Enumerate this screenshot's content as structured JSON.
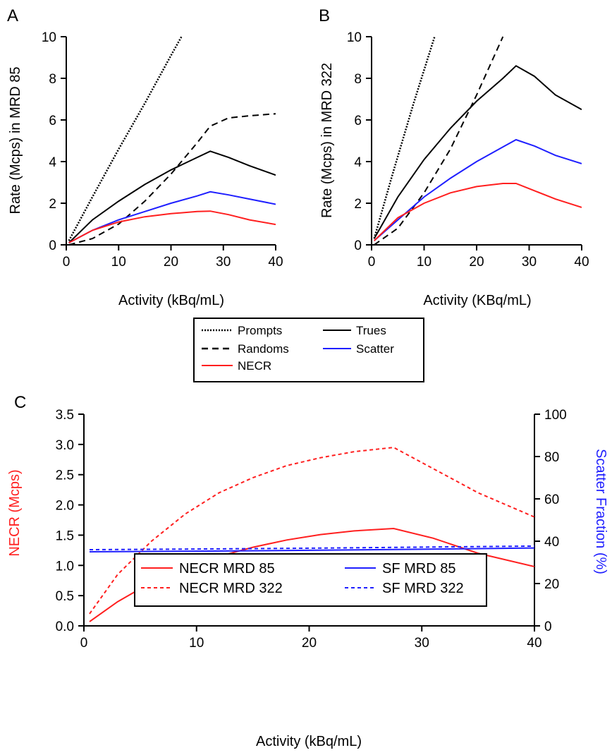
{
  "chart_data": [
    {
      "type": "line",
      "panel_label": "A",
      "xlabel": "Activity (kBq/mL)",
      "ylabel": "Rate (Mcps) in MRD 85",
      "xlim": [
        0,
        40
      ],
      "ylim": [
        0,
        10
      ],
      "xticks": [
        "0",
        "10",
        "20",
        "30",
        "40"
      ],
      "yticks": [
        "0",
        "2",
        "4",
        "6",
        "8",
        "10"
      ],
      "grid": false,
      "series": [
        {
          "key": "prompts",
          "color": "#000000",
          "style": "dotted",
          "x": [
            0.5,
            5,
            10,
            15,
            20,
            22
          ],
          "y": [
            0.2,
            2.3,
            4.6,
            6.8,
            9.1,
            10.0
          ]
        },
        {
          "key": "randoms",
          "color": "#000000",
          "style": "dashed",
          "x": [
            0.5,
            5,
            10,
            15,
            20,
            25,
            27.5,
            31,
            35,
            40
          ],
          "y": [
            0.0,
            0.3,
            1.0,
            2.1,
            3.4,
            4.9,
            5.7,
            6.1,
            6.2,
            6.3
          ]
        },
        {
          "key": "trues",
          "color": "#000000",
          "style": "solid",
          "x": [
            0.5,
            5,
            10,
            15,
            20,
            25,
            27.5,
            31,
            35,
            40
          ],
          "y": [
            0.1,
            1.2,
            2.1,
            2.9,
            3.6,
            4.2,
            4.5,
            4.2,
            3.8,
            3.35
          ]
        },
        {
          "key": "scatter",
          "color": "#1f1fff",
          "style": "solid",
          "x": [
            0.5,
            5,
            10,
            15,
            20,
            25,
            27.5,
            31,
            35,
            40
          ],
          "y": [
            0.1,
            0.7,
            1.2,
            1.6,
            2.0,
            2.35,
            2.55,
            2.4,
            2.2,
            1.95
          ]
        },
        {
          "key": "necr",
          "color": "#ff1f1f",
          "style": "solid",
          "x": [
            0.5,
            5,
            10,
            15,
            20,
            25,
            27.5,
            31,
            35,
            40
          ],
          "y": [
            0.1,
            0.7,
            1.1,
            1.35,
            1.5,
            1.6,
            1.62,
            1.45,
            1.2,
            0.98
          ]
        }
      ]
    },
    {
      "type": "line",
      "panel_label": "B",
      "xlabel": "Activity (KBq/mL)",
      "ylabel": "Rate (Mcps) in MRD 322",
      "xlim": [
        0,
        40
      ],
      "ylim": [
        0,
        10
      ],
      "xticks": [
        "0",
        "10",
        "20",
        "30",
        "40"
      ],
      "yticks": [
        "0",
        "2",
        "4",
        "6",
        "8",
        "10"
      ],
      "grid": false,
      "series": [
        {
          "key": "prompts",
          "color": "#000000",
          "style": "dotted",
          "x": [
            0.5,
            4,
            8,
            12
          ],
          "y": [
            0.3,
            3.4,
            6.8,
            10.0
          ]
        },
        {
          "key": "randoms",
          "color": "#000000",
          "style": "dashed",
          "x": [
            0.5,
            5,
            10,
            15,
            20,
            25
          ],
          "y": [
            0.0,
            0.8,
            2.5,
            4.6,
            7.2,
            10.0
          ]
        },
        {
          "key": "trues",
          "color": "#000000",
          "style": "solid",
          "x": [
            0.5,
            5,
            10,
            15,
            20,
            25,
            27.5,
            31,
            35,
            40
          ],
          "y": [
            0.3,
            2.3,
            4.1,
            5.6,
            6.9,
            8.0,
            8.6,
            8.1,
            7.2,
            6.5
          ]
        },
        {
          "key": "scatter",
          "color": "#1f1fff",
          "style": "solid",
          "x": [
            0.5,
            5,
            10,
            15,
            20,
            25,
            27.5,
            31,
            35,
            40
          ],
          "y": [
            0.2,
            1.2,
            2.3,
            3.2,
            4.0,
            4.7,
            5.05,
            4.75,
            4.3,
            3.9
          ]
        },
        {
          "key": "necr",
          "color": "#ff1f1f",
          "style": "solid",
          "x": [
            0.5,
            5,
            10,
            15,
            20,
            25,
            27.5,
            31,
            35,
            40
          ],
          "y": [
            0.2,
            1.3,
            2.0,
            2.5,
            2.8,
            2.95,
            2.95,
            2.6,
            2.2,
            1.8
          ]
        }
      ]
    },
    {
      "type": "line",
      "panel_label": "C",
      "xlabel": "Activity (kBq/mL)",
      "ylabel": "NECR (Mcps)",
      "y2label": "Scatter Fraction (%)",
      "xlim": [
        0,
        40
      ],
      "ylim": [
        0,
        3.5
      ],
      "y2lim": [
        0,
        100
      ],
      "xticks": [
        "0",
        "10",
        "20",
        "30",
        "40"
      ],
      "yticks": [
        "0.0",
        "0.5",
        "1.0",
        "1.5",
        "2.0",
        "2.5",
        "3.0",
        "3.5"
      ],
      "y2ticks": [
        "0",
        "20",
        "40",
        "60",
        "80",
        "100"
      ],
      "grid": false,
      "legend_position": "lower-center",
      "series": [
        {
          "name": "NECR MRD 85",
          "axis": "left",
          "color": "#ff1f1f",
          "style": "solid",
          "x": [
            0.5,
            3,
            6,
            9,
            12,
            15,
            18,
            21,
            24,
            27.5,
            31,
            35,
            40
          ],
          "y": [
            0.07,
            0.4,
            0.72,
            0.95,
            1.15,
            1.3,
            1.42,
            1.51,
            1.57,
            1.61,
            1.45,
            1.2,
            0.98
          ]
        },
        {
          "name": "NECR MRD 322",
          "axis": "left",
          "color": "#ff1f1f",
          "style": "dashed",
          "x": [
            0.5,
            3,
            6,
            9,
            12,
            15,
            18,
            21,
            24,
            27.5,
            31,
            35,
            40
          ],
          "y": [
            0.2,
            0.85,
            1.4,
            1.85,
            2.2,
            2.45,
            2.65,
            2.78,
            2.88,
            2.95,
            2.6,
            2.2,
            1.8
          ]
        },
        {
          "name": "SF MRD 85",
          "axis": "right",
          "color": "#1f1fff",
          "style": "solid",
          "x": [
            0.5,
            10,
            20,
            30,
            40
          ],
          "y": [
            35.0,
            35.3,
            35.7,
            36.2,
            36.8
          ]
        },
        {
          "name": "SF MRD 322",
          "axis": "right",
          "color": "#1f1fff",
          "style": "dashed",
          "x": [
            0.5,
            10,
            20,
            30,
            40
          ],
          "y": [
            36.0,
            36.3,
            36.7,
            37.2,
            37.7
          ]
        }
      ]
    }
  ],
  "legend_top": {
    "items": [
      {
        "key": "prompts",
        "label": "Prompts",
        "color": "#000000",
        "style": "dotted"
      },
      {
        "key": "randoms",
        "label": "Randoms",
        "color": "#000000",
        "style": "dashed"
      },
      {
        "key": "necr",
        "label": "NECR",
        "color": "#ff1f1f",
        "style": "solid"
      },
      {
        "key": "trues",
        "label": "Trues",
        "color": "#000000",
        "style": "solid"
      },
      {
        "key": "scatter",
        "label": "Scatter",
        "color": "#1f1fff",
        "style": "solid"
      }
    ]
  }
}
